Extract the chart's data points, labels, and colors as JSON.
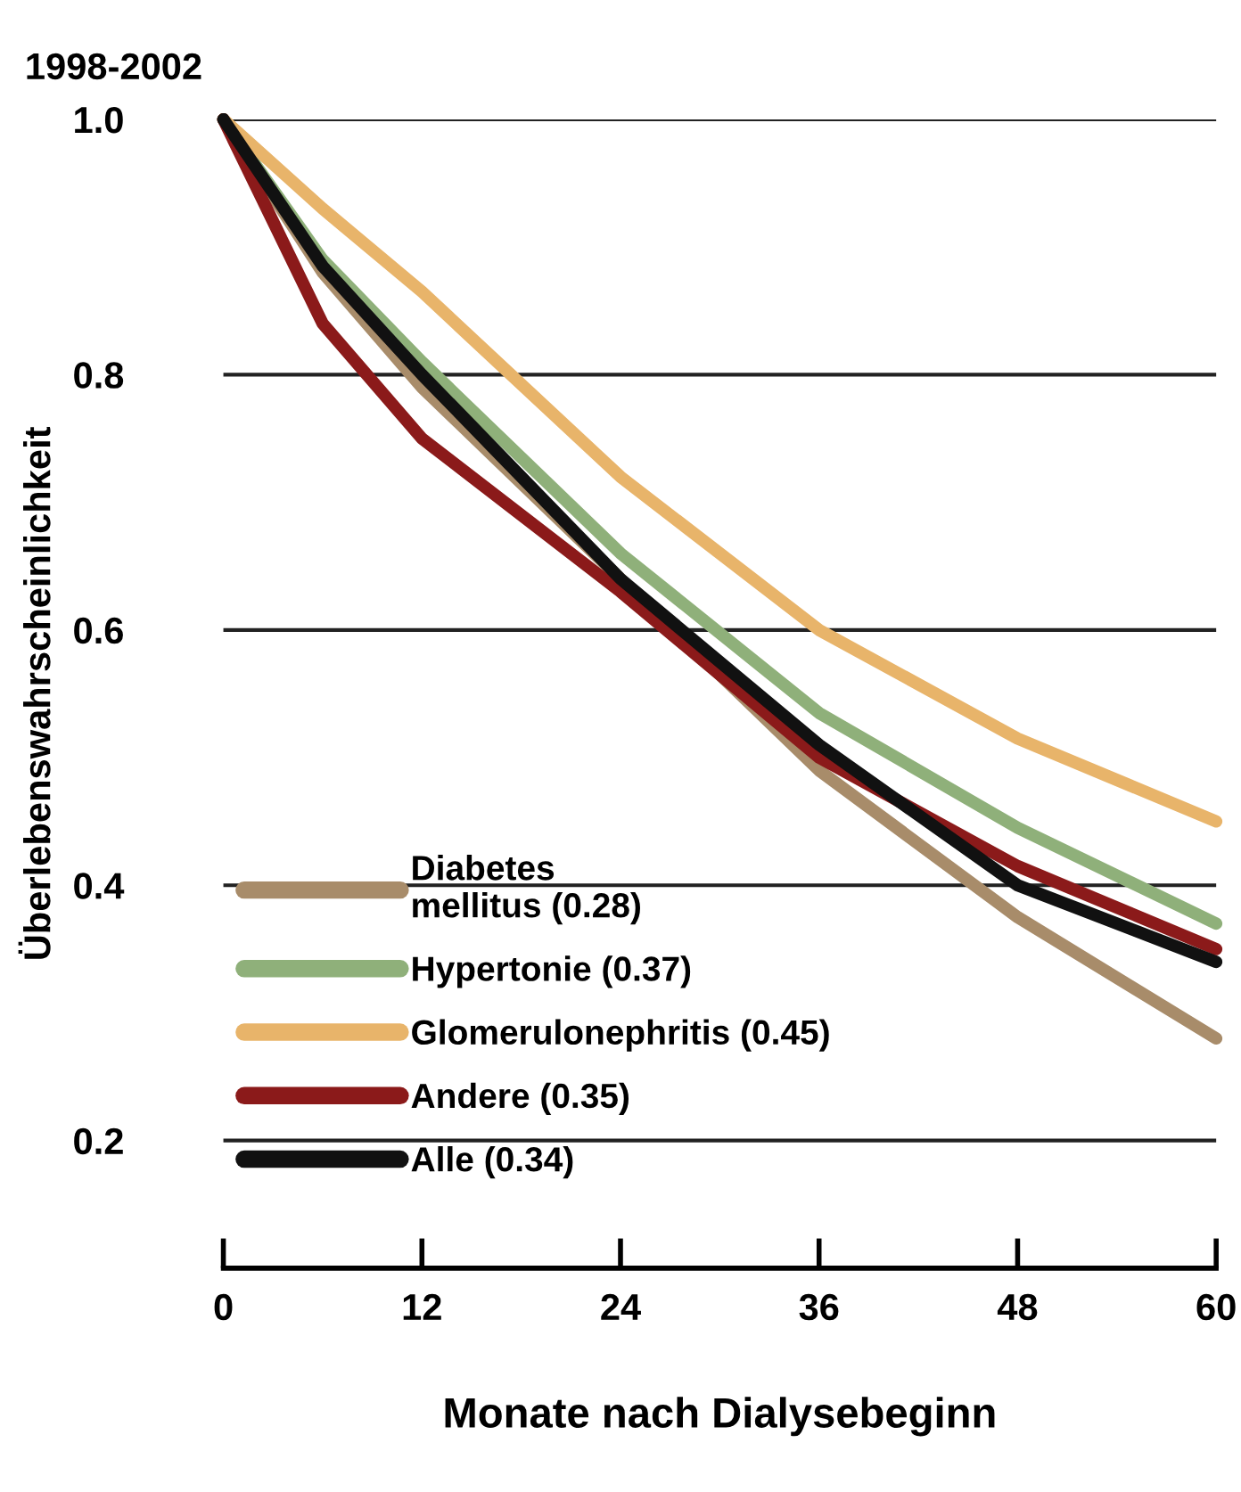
{
  "chart_data": {
    "type": "line",
    "title": "1998-2002",
    "xlabel": "Monate nach Dialysebeginn",
    "ylabel": "Überlebenswahrscheinlichkeit",
    "x": [
      0,
      6,
      12,
      24,
      36,
      48,
      60
    ],
    "series": [
      {
        "name": "Diabetes\nmellitus (0.28)",
        "color": "#a88c6a",
        "values": [
          1.0,
          0.88,
          0.79,
          0.64,
          0.49,
          0.375,
          0.28
        ]
      },
      {
        "name": "Hypertonie (0.37)",
        "color": "#8fb07a",
        "values": [
          1.0,
          0.89,
          0.81,
          0.66,
          0.535,
          0.445,
          0.37
        ]
      },
      {
        "name": "Glomerulonephritis (0.45)",
        "color": "#e8b46a",
        "values": [
          1.0,
          0.93,
          0.865,
          0.72,
          0.6,
          0.515,
          0.45
        ]
      },
      {
        "name": "Andere (0.35)",
        "color": "#8b1a1a",
        "values": [
          1.0,
          0.84,
          0.75,
          0.63,
          0.5,
          0.415,
          0.35
        ]
      },
      {
        "name": "Alle (0.34)",
        "color": "#111111",
        "values": [
          1.0,
          0.885,
          0.8,
          0.64,
          0.51,
          0.4,
          0.34
        ]
      }
    ],
    "xlim": [
      0,
      60
    ],
    "xticks": [
      0,
      12,
      24,
      36,
      48,
      60
    ],
    "ylim": [
      0.1,
      1.0
    ],
    "yticks": [
      0.2,
      0.4,
      0.6,
      0.8,
      {
        "value": 1.0,
        "label": "1.0"
      }
    ],
    "grid": "y",
    "legend": "bottom left",
    "marker": "none",
    "line_style": "solid"
  }
}
